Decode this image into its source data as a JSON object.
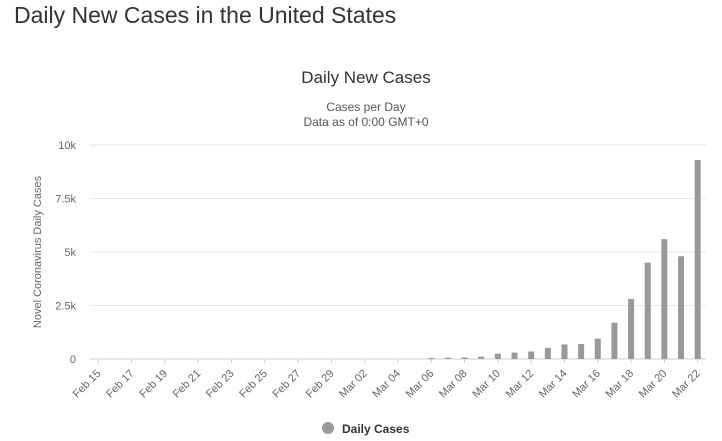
{
  "page": {
    "heading": "Daily New Cases in the United States"
  },
  "chart_data": {
    "type": "bar",
    "title": "Daily New Cases",
    "subtitle_lines": [
      "Cases per Day",
      "Data as of 0:00 GMT+0"
    ],
    "xlabel": "",
    "ylabel": "Novel Coronavirus Daily Cases",
    "ylim": [
      0,
      10000
    ],
    "yticks": [
      0,
      2500,
      5000,
      7500,
      10000
    ],
    "ytick_labels": [
      "0",
      "2.5k",
      "5k",
      "7.5k",
      "10k"
    ],
    "grid": true,
    "legend_position": "bottom-center",
    "bar_color": "#999999",
    "categories": [
      "Feb 15",
      "Feb 16",
      "Feb 17",
      "Feb 18",
      "Feb 19",
      "Feb 20",
      "Feb 21",
      "Feb 22",
      "Feb 23",
      "Feb 24",
      "Feb 25",
      "Feb 26",
      "Feb 27",
      "Feb 28",
      "Feb 29",
      "Mar 01",
      "Mar 02",
      "Mar 03",
      "Mar 04",
      "Mar 05",
      "Mar 06",
      "Mar 07",
      "Mar 08",
      "Mar 09",
      "Mar 10",
      "Mar 11",
      "Mar 12",
      "Mar 13",
      "Mar 14",
      "Mar 15",
      "Mar 16",
      "Mar 17",
      "Mar 18",
      "Mar 19",
      "Mar 20",
      "Mar 21",
      "Mar 22"
    ],
    "tick_labels": [
      "Feb 15",
      "Feb 17",
      "Feb 19",
      "Feb 21",
      "Feb 23",
      "Feb 25",
      "Feb 27",
      "Feb 29",
      "Mar 02",
      "Mar 04",
      "Mar 06",
      "Mar 08",
      "Mar 10",
      "Mar 12",
      "Mar 14",
      "Mar 16",
      "Mar 18",
      "Mar 20",
      "Mar 22"
    ],
    "series": [
      {
        "name": "Daily Cases",
        "values": [
          0,
          0,
          0,
          0,
          0,
          0,
          0,
          0,
          0,
          0,
          0,
          0,
          0,
          0,
          0,
          0,
          0,
          0,
          0,
          0,
          50,
          60,
          70,
          110,
          250,
          300,
          350,
          520,
          680,
          700,
          950,
          1700,
          2800,
          4500,
          5600,
          4800,
          9300
        ]
      }
    ]
  }
}
